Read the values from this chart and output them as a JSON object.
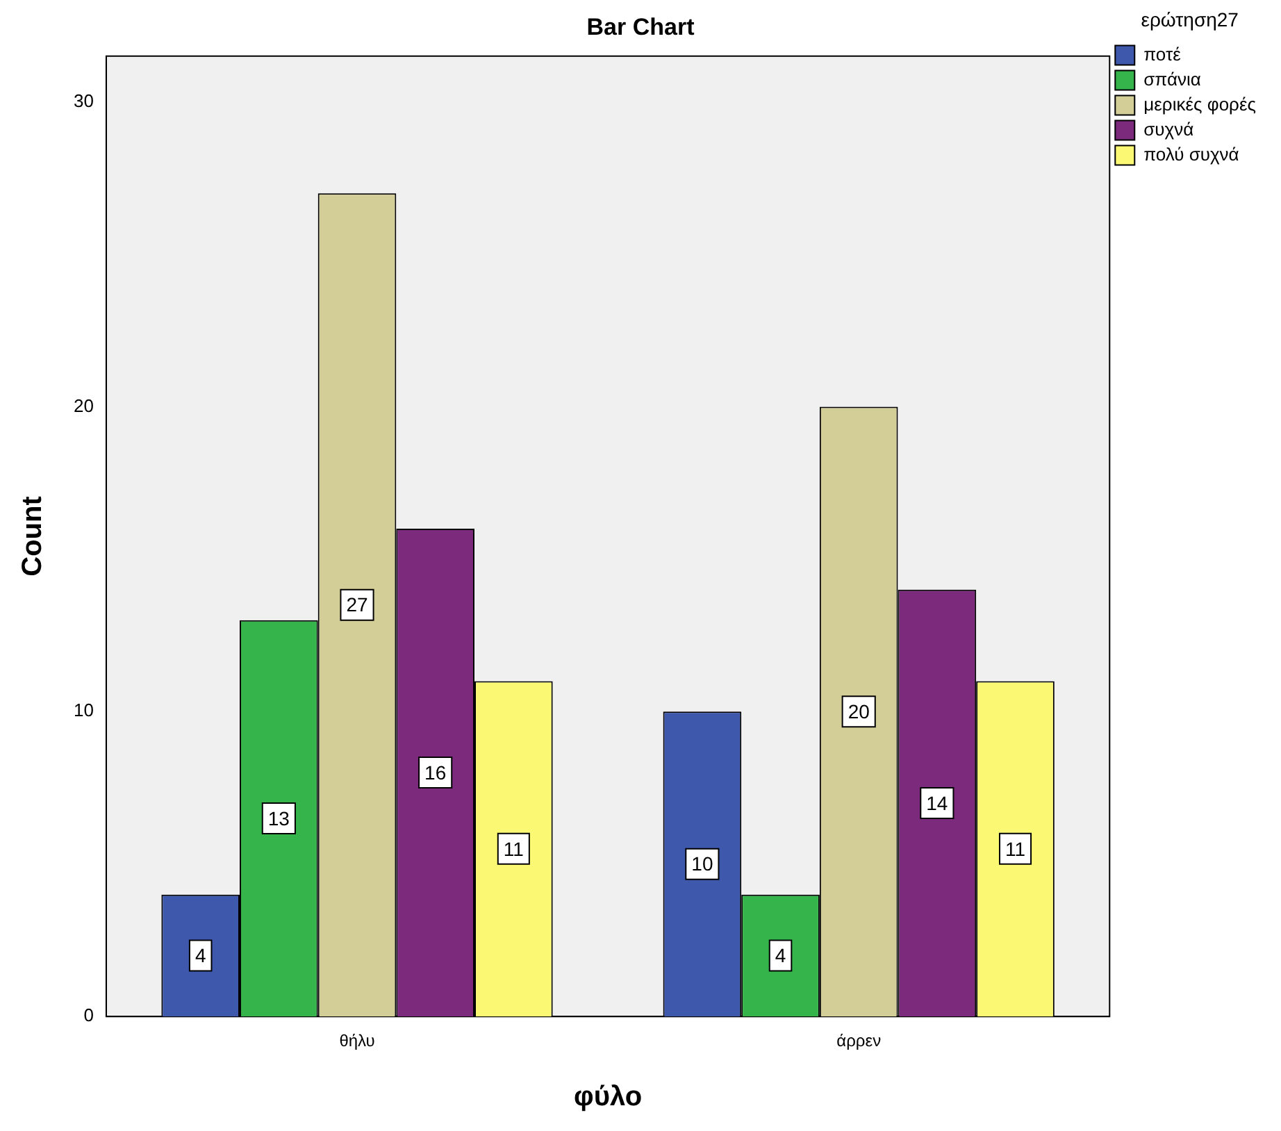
{
  "chart_data": {
    "type": "bar",
    "title": "Bar Chart",
    "xlabel": "φύλο",
    "ylabel": "Count",
    "legend_title": "ερώτηση27",
    "categories": [
      "θήλυ",
      "άρρεν"
    ],
    "series": [
      {
        "name": "ποτέ",
        "color": "#3e58ac",
        "values": [
          4,
          10
        ]
      },
      {
        "name": "σπάνια",
        "color": "#34b44a",
        "values": [
          13,
          4
        ]
      },
      {
        "name": "μερικές φορές",
        "color": "#d3ce97",
        "values": [
          27,
          20
        ]
      },
      {
        "name": "συχνά",
        "color": "#7b2a7c",
        "values": [
          16,
          14
        ]
      },
      {
        "name": "πολύ συχνά",
        "color": "#fbf873",
        "values": [
          11,
          11
        ]
      }
    ],
    "ylim": [
      0,
      31.5
    ],
    "yticks": [
      0,
      10,
      20,
      30
    ],
    "grid": false,
    "legend": "top right",
    "data_labels": true
  }
}
